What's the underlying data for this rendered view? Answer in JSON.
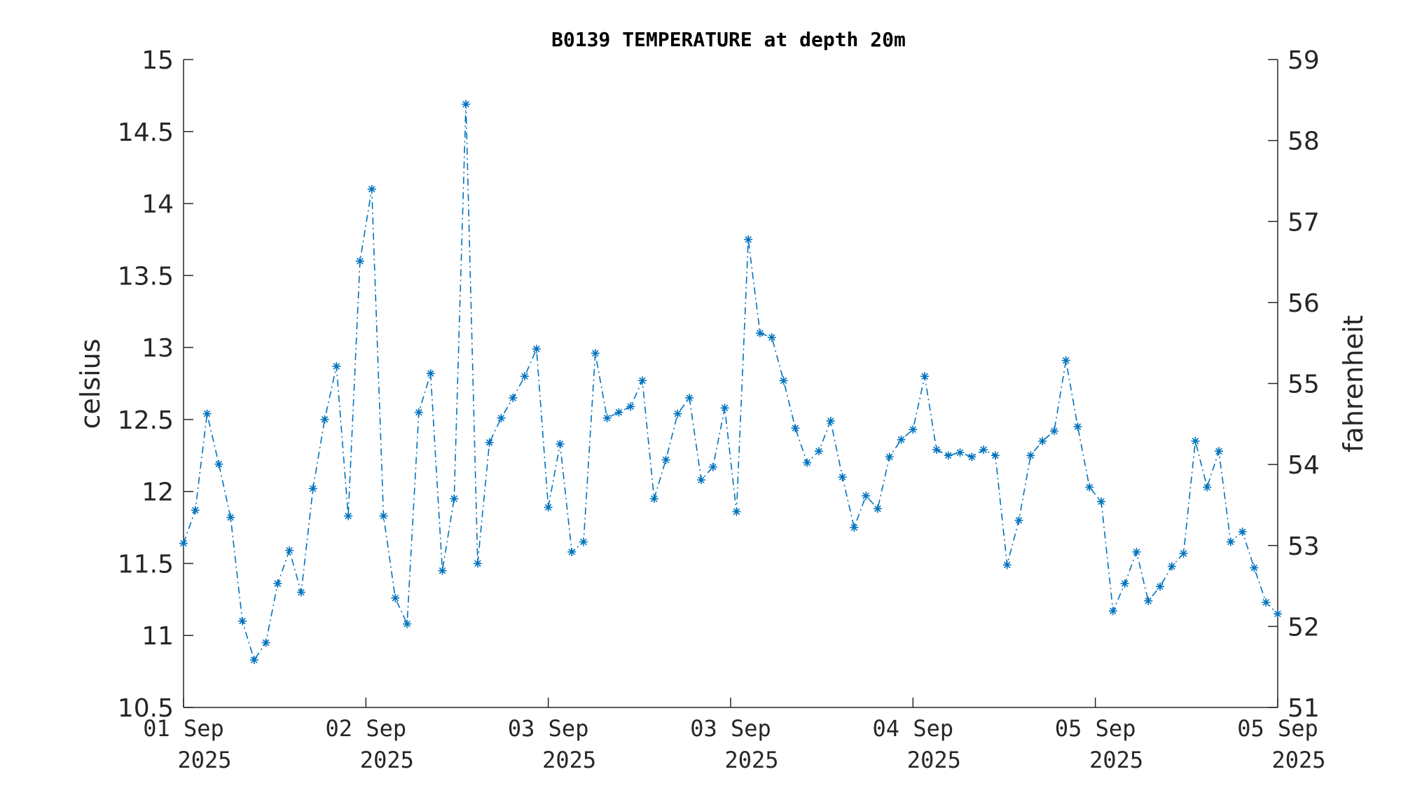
{
  "chart_data": {
    "type": "line",
    "title": "B0139 TEMPERATURE at depth 20m",
    "ylabel": "celsius",
    "ylabel_right": "fahrenheit",
    "ylim": [
      10.5,
      15
    ],
    "ylim_right": [
      51,
      59
    ],
    "yticks": [
      "15",
      "14.5",
      "14",
      "13.5",
      "13",
      "12.5",
      "12",
      "11.5",
      "11",
      "10.5"
    ],
    "yticks_right": [
      "59",
      "58",
      "57",
      "56",
      "55",
      "54",
      "53",
      "52",
      "51"
    ],
    "xticks": [
      {
        "line1": "01 Sep",
        "line2": "2025"
      },
      {
        "line1": "02 Sep",
        "line2": "2025"
      },
      {
        "line1": "03 Sep",
        "line2": "2025"
      },
      {
        "line1": "03 Sep",
        "line2": "2025"
      },
      {
        "line1": "04 Sep",
        "line2": "2025"
      },
      {
        "line1": "05 Sep",
        "line2": "2025"
      },
      {
        "line1": "05 Sep",
        "line2": "2025"
      }
    ],
    "marker": "asterisk",
    "line_style": "dash-dot",
    "grid": false,
    "color": "#0072BD",
    "series": [
      {
        "values": [
          11.64,
          11.87,
          12.54,
          12.19,
          11.82,
          11.1,
          10.83,
          10.95,
          11.36,
          11.59,
          11.3,
          12.02,
          12.5,
          12.87,
          11.83,
          13.6,
          14.1,
          11.83,
          11.26,
          11.08,
          12.55,
          12.82,
          11.45,
          11.95,
          14.69,
          11.5,
          12.34,
          12.51,
          12.65,
          12.8,
          12.99,
          11.89,
          12.33,
          11.58,
          11.65,
          12.96,
          12.51,
          12.55,
          12.59,
          12.77,
          11.95,
          12.22,
          12.54,
          12.65,
          12.08,
          12.17,
          12.58,
          11.86,
          13.75,
          13.1,
          13.07,
          12.77,
          12.44,
          12.2,
          12.28,
          12.49,
          12.1,
          11.75,
          11.97,
          11.88,
          12.24,
          12.36,
          12.43,
          12.8,
          12.29,
          12.25,
          12.27,
          12.24,
          12.29,
          12.25,
          11.49,
          11.8,
          12.25,
          12.35,
          12.42,
          12.91,
          12.45,
          12.03,
          11.93,
          11.17,
          11.36,
          11.58,
          11.24,
          11.34,
          11.48,
          11.57,
          12.35,
          12.03,
          12.28,
          11.65,
          11.72,
          11.47,
          11.23,
          11.15
        ]
      }
    ]
  }
}
